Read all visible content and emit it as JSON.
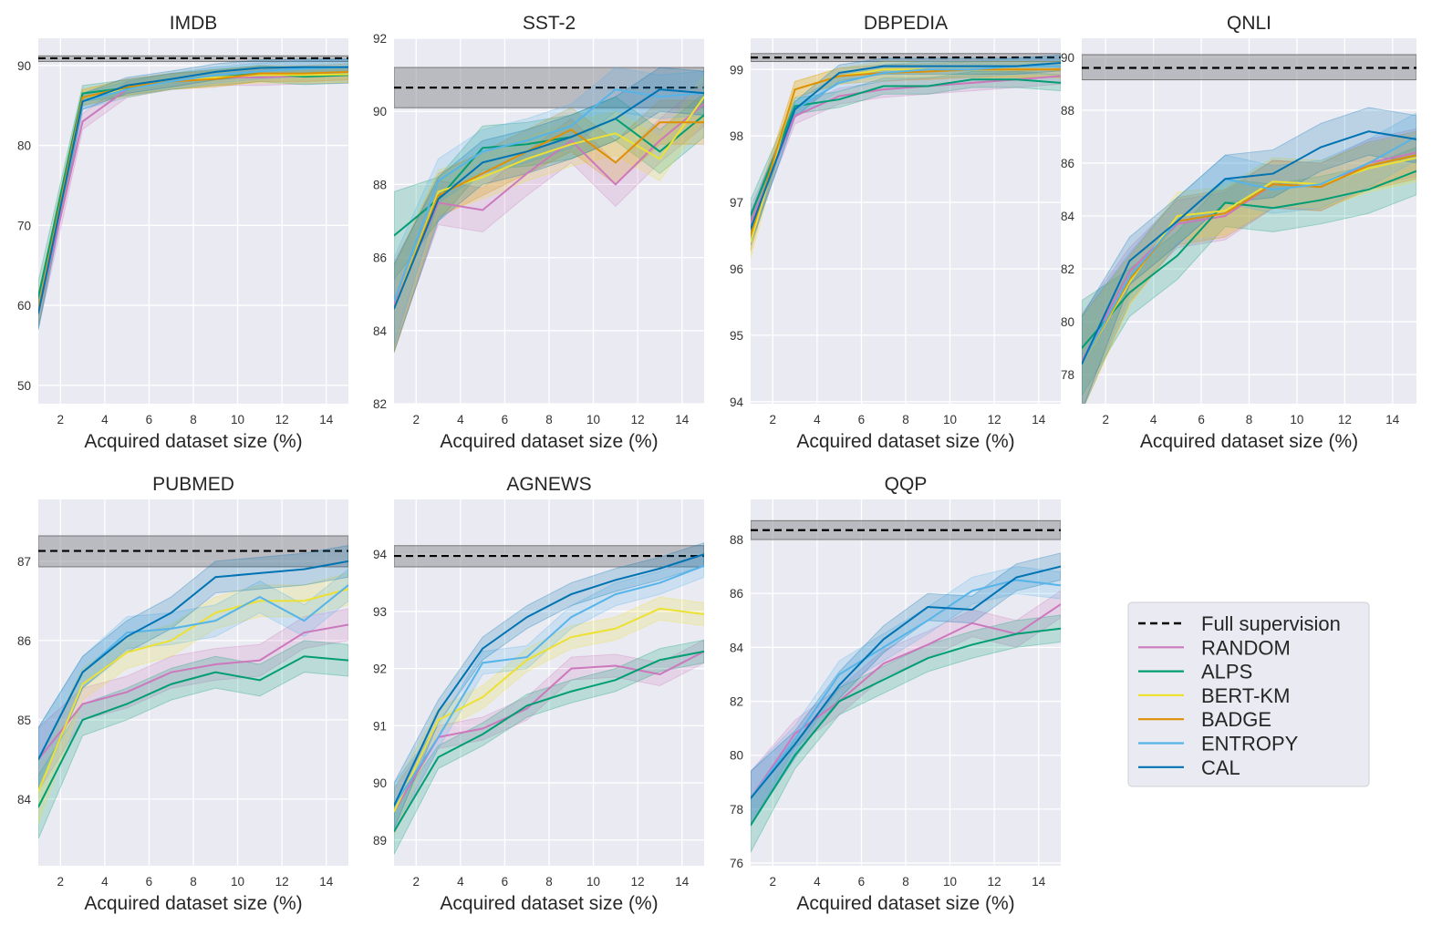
{
  "colors": {
    "RANDOM": "#cc78bc",
    "ALPS": "#029e73",
    "BERT-KM": "#ece133",
    "BADGE": "#de8f05",
    "ENTROPY": "#56b4e9",
    "CAL": "#0173b2",
    "Full supervision": "#000000",
    "plot_background": "#eaeaf2"
  },
  "legend": {
    "placement": "bottom-right empty cell",
    "entries": [
      "Full supervision",
      "RANDOM",
      "ALPS",
      "BERT-KM",
      "BADGE",
      "ENTROPY",
      "CAL"
    ]
  },
  "chart_data": [
    {
      "type": "line",
      "title": "IMDB",
      "xlabel": "Acquired dataset size (%)",
      "ylabel": "",
      "xlim": [
        1,
        15
      ],
      "ylim": [
        47.7,
        93.4
      ],
      "grid": true,
      "xticks": [
        2,
        4,
        6,
        8,
        10,
        12,
        14
      ],
      "yticks": [
        50,
        60,
        70,
        80,
        90
      ],
      "x": [
        1,
        3,
        5,
        7,
        9,
        11,
        13,
        15
      ],
      "full_supervision": {
        "value": 90.9,
        "band": [
          90.5,
          91.2
        ]
      },
      "ci": 1.0,
      "series": [
        {
          "name": "RANDOM",
          "values": [
            59,
            83,
            87,
            88,
            88.5,
            88.5,
            88.7,
            88.8
          ]
        },
        {
          "name": "ALPS",
          "values": [
            61,
            86.5,
            87.2,
            88,
            88.5,
            89,
            88.6,
            88.8
          ]
        },
        {
          "name": "BERT-KM",
          "values": [
            59.5,
            86,
            87,
            88,
            88.5,
            88.8,
            88.8,
            88.9
          ]
        },
        {
          "name": "BADGE",
          "values": [
            59.5,
            86,
            87.3,
            88,
            88.3,
            89,
            89,
            89.2
          ]
        },
        {
          "name": "ENTROPY",
          "values": [
            59,
            85.5,
            87,
            88,
            88.8,
            89.3,
            89.6,
            89.8
          ]
        },
        {
          "name": "CAL",
          "values": [
            59,
            85.5,
            87.5,
            88.3,
            89.2,
            89.7,
            89.8,
            89.8
          ]
        }
      ]
    },
    {
      "type": "line",
      "title": "SST-2",
      "xlabel": "Acquired dataset size (%)",
      "ylabel": "",
      "xlim": [
        1,
        15
      ],
      "ylim": [
        82,
        92
      ],
      "grid": true,
      "xticks": [
        2,
        4,
        6,
        8,
        10,
        12,
        14
      ],
      "yticks": [
        82,
        84,
        86,
        88,
        90,
        92
      ],
      "x": [
        1,
        3,
        5,
        7,
        9,
        11,
        13,
        15
      ],
      "full_supervision": {
        "value": 90.65,
        "band": [
          90.1,
          91.2
        ]
      },
      "ci": 0.6,
      "series": [
        {
          "name": "RANDOM",
          "values": [
            84.7,
            87.5,
            87.3,
            88.3,
            89.2,
            88.0,
            89.2,
            90.2
          ]
        },
        {
          "name": "ALPS",
          "values": [
            86.6,
            87.6,
            89.0,
            89.1,
            89.3,
            89.8,
            88.9,
            89.9
          ]
        },
        {
          "name": "BERT-KM",
          "values": [
            84.6,
            87.8,
            88.2,
            88.7,
            89.1,
            89.4,
            88.7,
            90.4
          ]
        },
        {
          "name": "BADGE",
          "values": [
            84.6,
            87.7,
            88.3,
            88.9,
            89.5,
            88.6,
            89.7,
            89.7
          ]
        },
        {
          "name": "ENTROPY",
          "values": [
            84.8,
            88.1,
            88.9,
            89.2,
            89.6,
            90.6,
            90.4,
            90.5
          ]
        },
        {
          "name": "CAL",
          "values": [
            84.6,
            87.6,
            88.6,
            88.9,
            89.3,
            89.8,
            90.6,
            90.5
          ]
        }
      ]
    },
    {
      "type": "line",
      "title": "DBPEDIA",
      "xlabel": "Acquired dataset size (%)",
      "ylabel": "",
      "xlim": [
        1,
        15
      ],
      "ylim": [
        93.97,
        99.47
      ],
      "grid": true,
      "xticks": [
        2,
        4,
        6,
        8,
        10,
        12,
        14
      ],
      "yticks": [
        94,
        95,
        96,
        97,
        98,
        99
      ],
      "x": [
        1,
        3,
        5,
        7,
        9,
        11,
        13,
        15
      ],
      "full_supervision": {
        "value": 99.18,
        "band": [
          99.12,
          99.24
        ]
      },
      "ci": 0.12,
      "series": [
        {
          "name": "RANDOM",
          "values": [
            96.7,
            98.3,
            98.6,
            98.7,
            98.75,
            98.8,
            98.85,
            98.9
          ]
        },
        {
          "name": "ALPS",
          "values": [
            96.8,
            98.45,
            98.55,
            98.75,
            98.75,
            98.85,
            98.85,
            98.8
          ]
        },
        {
          "name": "BERT-KM",
          "values": [
            96.4,
            98.7,
            98.9,
            99.0,
            99.0,
            99.0,
            99.0,
            99.0
          ]
        },
        {
          "name": "BADGE",
          "values": [
            96.5,
            98.7,
            98.9,
            98.95,
            98.97,
            99.0,
            99.0,
            99.0
          ]
        },
        {
          "name": "ENTROPY",
          "values": [
            96.6,
            98.4,
            98.8,
            98.95,
            99.0,
            99.0,
            99.05,
            99.05
          ]
        },
        {
          "name": "CAL",
          "values": [
            96.6,
            98.4,
            98.95,
            99.05,
            99.05,
            99.05,
            99.05,
            99.1
          ]
        }
      ]
    },
    {
      "type": "line",
      "title": "QNLI",
      "xlabel": "Acquired dataset size (%)",
      "ylabel": "",
      "xlim": [
        1,
        15
      ],
      "ylim": [
        76.9,
        90.72
      ],
      "grid": true,
      "xticks": [
        2,
        4,
        6,
        8,
        10,
        12,
        14
      ],
      "yticks": [
        78,
        80,
        82,
        84,
        86,
        88,
        90
      ],
      "x": [
        1,
        3,
        5,
        7,
        9,
        11,
        13,
        15
      ],
      "full_supervision": {
        "value": 89.6,
        "band": [
          89.15,
          90.1
        ]
      },
      "ci": 0.9,
      "series": [
        {
          "name": "RANDOM",
          "values": [
            78.5,
            81.9,
            83.7,
            84.0,
            85.2,
            85.1,
            86.0,
            86.4
          ]
        },
        {
          "name": "ALPS",
          "values": [
            79.0,
            81.1,
            82.5,
            84.5,
            84.3,
            84.6,
            85.0,
            85.7
          ]
        },
        {
          "name": "BERT-KM",
          "values": [
            78.4,
            81.5,
            84.0,
            84.2,
            85.3,
            85.2,
            85.8,
            86.2
          ]
        },
        {
          "name": "BADGE",
          "values": [
            78.4,
            81.6,
            83.8,
            84.1,
            85.2,
            85.1,
            85.9,
            86.3
          ]
        },
        {
          "name": "ENTROPY",
          "values": [
            78.4,
            81.7,
            83.8,
            85.4,
            85.0,
            85.2,
            86.0,
            87.0
          ]
        },
        {
          "name": "CAL",
          "values": [
            78.4,
            82.3,
            83.8,
            85.4,
            85.6,
            86.6,
            87.2,
            86.9
          ]
        }
      ]
    },
    {
      "type": "line",
      "title": "PUBMED",
      "xlabel": "Acquired dataset size (%)",
      "ylabel": "",
      "xlim": [
        1,
        15
      ],
      "ylim": [
        83.16,
        87.78
      ],
      "grid": true,
      "xticks": [
        2,
        4,
        6,
        8,
        10,
        12,
        14
      ],
      "yticks": [
        84,
        85,
        86,
        87
      ],
      "x": [
        1,
        3,
        5,
        7,
        9,
        11,
        13,
        15
      ],
      "full_supervision": {
        "value": 87.13,
        "band": [
          86.93,
          87.32
        ]
      },
      "ci": 0.2,
      "series": [
        {
          "name": "RANDOM",
          "values": [
            84.5,
            85.2,
            85.35,
            85.6,
            85.7,
            85.75,
            86.1,
            86.2
          ]
        },
        {
          "name": "ALPS",
          "values": [
            83.9,
            85.0,
            85.2,
            85.45,
            85.6,
            85.5,
            85.8,
            85.75
          ]
        },
        {
          "name": "BERT-KM",
          "values": [
            84.1,
            85.45,
            85.85,
            86.0,
            86.35,
            86.5,
            86.5,
            86.65
          ]
        },
        {
          "name": "ENTROPY",
          "values": [
            84.5,
            85.6,
            86.1,
            86.15,
            86.25,
            86.55,
            86.25,
            86.7
          ]
        },
        {
          "name": "CAL",
          "values": [
            84.5,
            85.6,
            86.05,
            86.35,
            86.8,
            86.85,
            86.9,
            87.0
          ]
        }
      ]
    },
    {
      "type": "line",
      "title": "AGNEWS",
      "xlabel": "Acquired dataset size (%)",
      "ylabel": "",
      "xlim": [
        1,
        15
      ],
      "ylim": [
        88.55,
        94.96
      ],
      "grid": true,
      "xticks": [
        2,
        4,
        6,
        8,
        10,
        12,
        14
      ],
      "yticks": [
        89,
        90,
        91,
        92,
        93,
        94
      ],
      "x": [
        1,
        3,
        5,
        7,
        9,
        11,
        13,
        15
      ],
      "full_supervision": {
        "value": 93.97,
        "band": [
          93.78,
          94.15
        ]
      },
      "ci": 0.2,
      "series": [
        {
          "name": "RANDOM",
          "values": [
            89.5,
            90.8,
            90.95,
            91.3,
            92.0,
            92.05,
            91.9,
            92.3
          ]
        },
        {
          "name": "ALPS",
          "values": [
            89.15,
            90.45,
            90.85,
            91.35,
            91.6,
            91.8,
            92.15,
            92.3
          ]
        },
        {
          "name": "BERT-KM",
          "values": [
            89.5,
            91.1,
            91.5,
            92.15,
            92.55,
            92.7,
            93.05,
            92.95
          ]
        },
        {
          "name": "ENTROPY",
          "values": [
            89.6,
            90.8,
            92.1,
            92.2,
            92.9,
            93.3,
            93.5,
            93.8
          ]
        },
        {
          "name": "CAL",
          "values": [
            89.6,
            91.25,
            92.35,
            92.9,
            93.3,
            93.55,
            93.75,
            94.0
          ]
        }
      ]
    },
    {
      "type": "line",
      "title": "QQP",
      "xlabel": "Acquired dataset size (%)",
      "ylabel": "",
      "xlim": [
        1,
        15
      ],
      "ylim": [
        75.9,
        89.49
      ],
      "grid": true,
      "xticks": [
        2,
        4,
        6,
        8,
        10,
        12,
        14
      ],
      "yticks": [
        76,
        78,
        80,
        82,
        84,
        86,
        88
      ],
      "x": [
        1,
        3,
        5,
        7,
        9,
        11,
        13,
        15
      ],
      "full_supervision": {
        "value": 88.35,
        "band": [
          88.0,
          88.7
        ]
      },
      "ci": 0.5,
      "series": [
        {
          "name": "RANDOM",
          "values": [
            78.4,
            80.8,
            82.0,
            83.4,
            84.1,
            84.9,
            84.5,
            85.6
          ]
        },
        {
          "name": "ALPS",
          "values": [
            77.4,
            80.0,
            82.0,
            82.8,
            83.6,
            84.1,
            84.5,
            84.7
          ]
        },
        {
          "name": "ENTROPY",
          "values": [
            78.4,
            80.6,
            83.0,
            84.0,
            85.0,
            86.1,
            86.5,
            86.3
          ]
        },
        {
          "name": "CAL",
          "values": [
            78.4,
            80.4,
            82.6,
            84.3,
            85.5,
            85.4,
            86.6,
            87.0
          ]
        }
      ]
    }
  ]
}
